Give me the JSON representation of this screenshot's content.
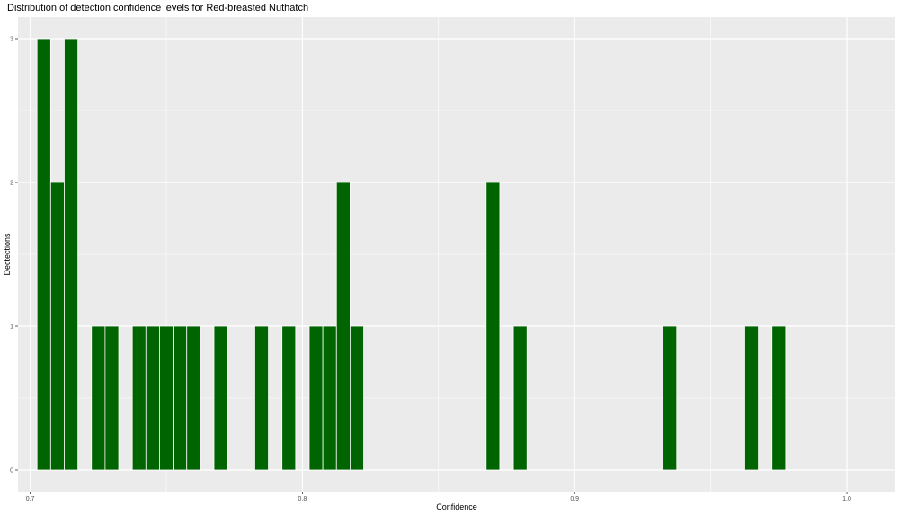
{
  "chart_data": {
    "type": "bar",
    "title": "Distribution of detection confidence levels for Red-breasted Nuthatch",
    "xlabel": "Confidence",
    "ylabel": "Dectections",
    "xlim": [
      0.6955,
      1.0175
    ],
    "ylim": [
      -0.15,
      3.15
    ],
    "x_ticks": [
      0.7,
      0.8,
      0.9,
      1.0
    ],
    "x_tick_labels": [
      "0.7",
      "0.8",
      "0.9",
      "1.0"
    ],
    "y_ticks": [
      0,
      1,
      2,
      3
    ],
    "y_tick_labels": [
      "0",
      "1",
      "2",
      "3"
    ],
    "bin_width": 0.005,
    "bins": [
      {
        "x": 0.705,
        "count": 3
      },
      {
        "x": 0.71,
        "count": 2
      },
      {
        "x": 0.715,
        "count": 3
      },
      {
        "x": 0.725,
        "count": 1
      },
      {
        "x": 0.73,
        "count": 1
      },
      {
        "x": 0.74,
        "count": 1
      },
      {
        "x": 0.745,
        "count": 1
      },
      {
        "x": 0.75,
        "count": 1
      },
      {
        "x": 0.755,
        "count": 1
      },
      {
        "x": 0.76,
        "count": 1
      },
      {
        "x": 0.77,
        "count": 1
      },
      {
        "x": 0.785,
        "count": 1
      },
      {
        "x": 0.795,
        "count": 1
      },
      {
        "x": 0.805,
        "count": 1
      },
      {
        "x": 0.81,
        "count": 1
      },
      {
        "x": 0.815,
        "count": 2
      },
      {
        "x": 0.82,
        "count": 1
      },
      {
        "x": 0.87,
        "count": 2
      },
      {
        "x": 0.88,
        "count": 1
      },
      {
        "x": 0.935,
        "count": 1
      },
      {
        "x": 0.965,
        "count": 1
      },
      {
        "x": 0.975,
        "count": 1
      }
    ],
    "bar_color": "#006400",
    "bar_outline_color": "#ffffff",
    "panel_background": "#ebebeb",
    "grid": true,
    "grid_color": "#ffffff",
    "legend": "none"
  }
}
